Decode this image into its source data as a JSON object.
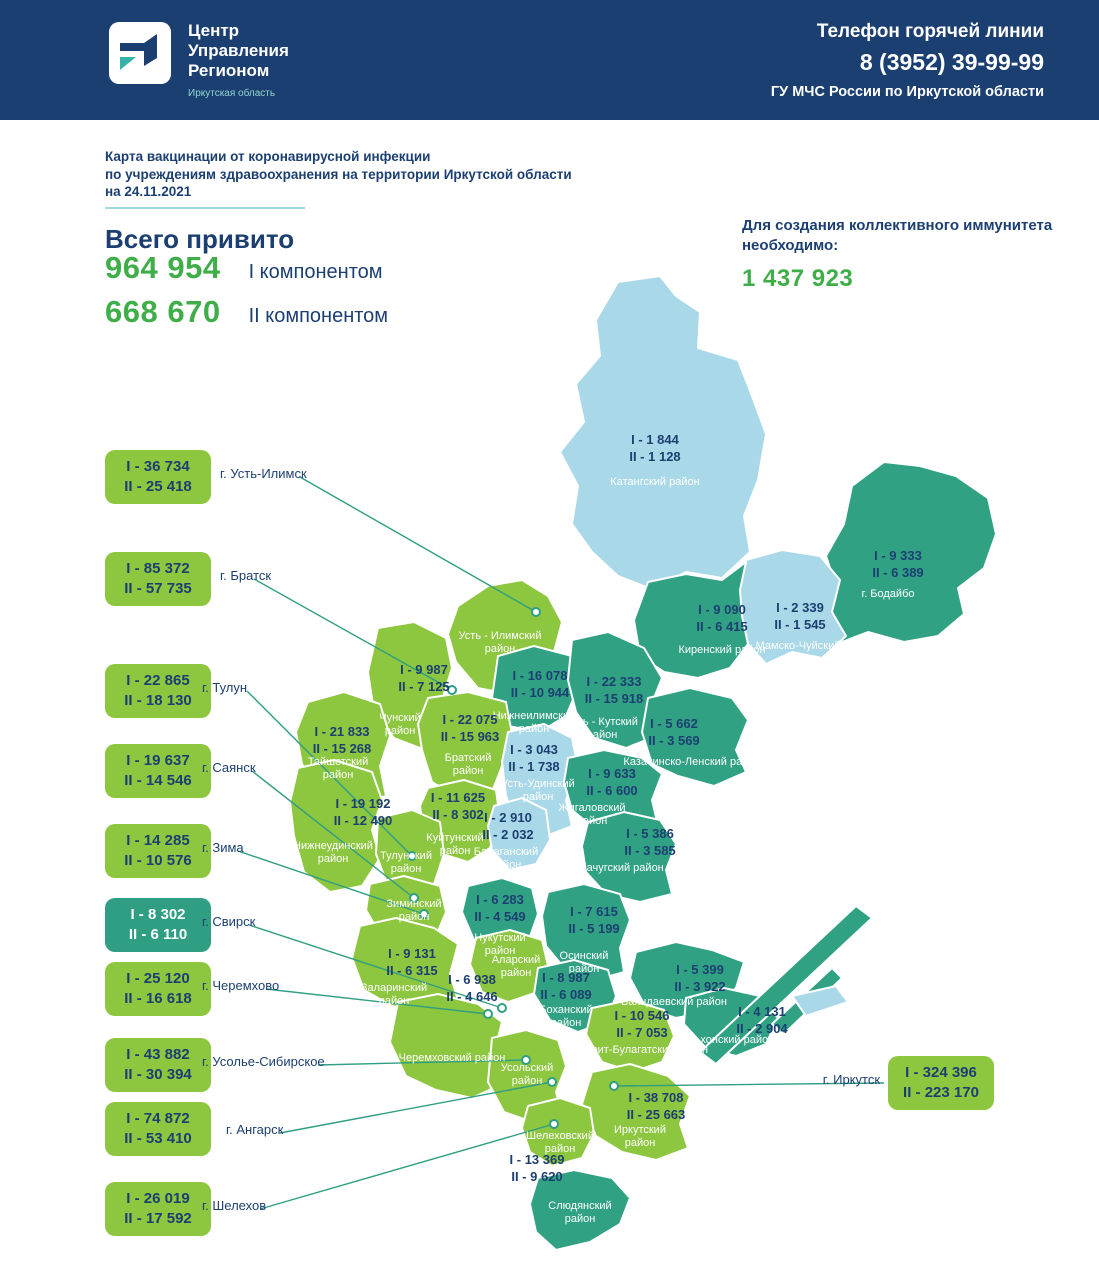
{
  "colors": {
    "header_navy": "#1c3f72",
    "region_green": "#8dc63f",
    "region_teal": "#31a183",
    "region_lightblue": "#a9d8e8",
    "value_green": "#3fae49",
    "accent_teal": "#2f9e83"
  },
  "header": {
    "logo_title": "Центр Управления Регионом",
    "logo_subtitle": "Иркутская область",
    "hotline_label": "Телефон горячей линии",
    "hotline_phone": "8 (3952) 39-99-99",
    "hotline_org": "ГУ МЧС России по Иркутской области"
  },
  "title": {
    "line1": "Карта вакцинации от коронавирусной инфекции",
    "line2": "по учреждениям здравоохранения на территории Иркутской области",
    "line3": "на 24.11.2021"
  },
  "totals": {
    "heading": "Всего привито",
    "items": [
      {
        "value": "964 954",
        "label": "I компонентом"
      },
      {
        "value": "668 670",
        "label": "II компонентом"
      }
    ]
  },
  "immunity": {
    "label": "Для создания коллективного иммунитета необходимо:",
    "value": "1 437 923"
  },
  "city_callouts": [
    {
      "id": "ust_ilimsk",
      "i": "I - 36 734",
      "ii": "II - 25 418",
      "city": "г. Усть-Илимск",
      "color": "green"
    },
    {
      "id": "bratsk",
      "i": "I - 85 372",
      "ii": "II - 57 735",
      "city": "г. Братск",
      "color": "green"
    },
    {
      "id": "tulun",
      "i": "I - 22 865",
      "ii": "II - 18 130",
      "city": "г. Тулун",
      "color": "green"
    },
    {
      "id": "sayansk",
      "i": "I - 19 637",
      "ii": "II - 14 546",
      "city": "г. Саянск",
      "color": "green"
    },
    {
      "id": "zima",
      "i": "I - 14 285",
      "ii": "II - 10 576",
      "city": "г. Зима",
      "color": "green"
    },
    {
      "id": "svirsk",
      "i": "I - 8 302",
      "ii": "II - 6 110",
      "city": "г. Свирск",
      "color": "teal"
    },
    {
      "id": "cheremkhovo",
      "i": "I - 25 120",
      "ii": "II - 16 618",
      "city": "г. Черемхово",
      "color": "green"
    },
    {
      "id": "usolye",
      "i": "I - 43 882",
      "ii": "II - 30 394",
      "city": "г. Усолье-Сибирское",
      "color": "green"
    },
    {
      "id": "angarsk",
      "i": "I - 74 872",
      "ii": "II - 53 410",
      "city": "г. Ангарск",
      "color": "green"
    },
    {
      "id": "shelekhov",
      "i": "I - 26 019",
      "ii": "II - 17 592",
      "city": "г. Шелехов",
      "color": "green"
    },
    {
      "id": "irkutsk",
      "i": "I - 324 396",
      "ii": "II - 223 170",
      "city": "г. Иркутск",
      "color": "green"
    }
  ],
  "map_regions": [
    {
      "id": "katangsky",
      "name": "Катангский район",
      "i": "I - 1 844",
      "ii": "II - 1 128"
    },
    {
      "id": "bodaibo",
      "name": "г. Бодайбо",
      "i": "I - 9 333",
      "ii": "II - 6 389"
    },
    {
      "id": "mamsko",
      "name": "Мамско-Чуйский район",
      "i": "I - 2 339",
      "ii": "II - 1 545"
    },
    {
      "id": "kirensky",
      "name": "Киренский район",
      "i": "I - 9 090",
      "ii": "II - 6 415"
    },
    {
      "id": "ust_ilimsky",
      "name": "Усть - Илимский район"
    },
    {
      "id": "chunsky",
      "name": "Чунский район",
      "i": "I - 9 987",
      "ii": "II - 7 125"
    },
    {
      "id": "nizhneilimsky",
      "name": "Нижнеилимский район",
      "i": "I - 16 078",
      "ii": "II - 10 944"
    },
    {
      "id": "ust_kutsky",
      "name": "Усть - Кутский район",
      "i": "I - 22 333",
      "ii": "II - 15 918"
    },
    {
      "id": "kazachinsko",
      "name": "Казачинско-Ленский район",
      "i": "I - 5 662",
      "ii": "II - 3 569"
    },
    {
      "id": "taishetsky",
      "name": "Тайшетский район",
      "i": "I - 21 833",
      "ii": "II - 15 268"
    },
    {
      "id": "bratsky",
      "name": "Братский район",
      "i": "I - 22 075",
      "ii": "II - 15 963"
    },
    {
      "id": "ust_udinsky",
      "name": "Усть-Удинский район",
      "i": "I - 3 043",
      "ii": "II - 1 738"
    },
    {
      "id": "zhigalovsky",
      "name": "Жигаловский район",
      "i": "I - 9 633",
      "ii": "II - 6 600"
    },
    {
      "id": "nizhneudinsky",
      "name": "Нижнеудинский район",
      "i": "I - 19 192",
      "ii": "II - 12 490"
    },
    {
      "id": "kuitunsky",
      "name": "Куйтунский район",
      "i": "I - 11 625",
      "ii": "II - 8 302"
    },
    {
      "id": "balagansky",
      "name": "Балаганский район",
      "i": "I - 2 910",
      "ii": "II - 2 032"
    },
    {
      "id": "kachugsky",
      "name": "Качугский район",
      "i": "I - 5 386",
      "ii": "II - 3 585"
    },
    {
      "id": "tulunsky",
      "name": "Тулунский район"
    },
    {
      "id": "ziminsky",
      "name": "Зиминский район"
    },
    {
      "id": "nukutsky",
      "name": "Нукутский район",
      "i": "I - 6 283",
      "ii": "II - 4 549"
    },
    {
      "id": "osinsky",
      "name": "Осинский район",
      "i": "I - 7 615",
      "ii": "II - 5 199"
    },
    {
      "id": "alarsky",
      "name": "Аларский район",
      "i": "I - 6 938",
      "ii": "II - 4 646"
    },
    {
      "id": "zalarinsky",
      "name": "Заларинский район",
      "i": "I - 9 131",
      "ii": "II - 6 315"
    },
    {
      "id": "bokhansky",
      "name": "Боханский район",
      "i": "I - 8 987",
      "ii": "II - 6 089"
    },
    {
      "id": "bayandaevsky",
      "name": "Баяндаевский район",
      "i": "I - 5 399",
      "ii": "II - 3 922"
    },
    {
      "id": "olkhonsky",
      "name": "Ольхонский район",
      "i": "I - 4 131",
      "ii": "II - 2 904"
    },
    {
      "id": "ekhirit",
      "name": "Эхирит-Булагатский район",
      "i": "I - 10 546",
      "ii": "II - 7 053"
    },
    {
      "id": "cheremkhovsky",
      "name": "Черемховский район"
    },
    {
      "id": "usolsky",
      "name": "Усольский район"
    },
    {
      "id": "irkutsky",
      "name": "Иркутский район",
      "i": "I - 38 708",
      "ii": "II - 25 663"
    },
    {
      "id": "shelekhovsky",
      "name": "Шелеховский район"
    },
    {
      "id": "slyudyansky",
      "name": "Слюдянский район",
      "i": "I - 13 369",
      "ii": "II - 9 620"
    }
  ]
}
